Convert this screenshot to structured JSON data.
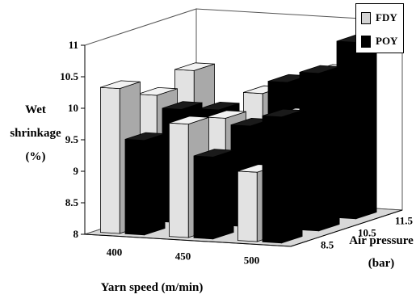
{
  "chart_data": {
    "type": "bar",
    "subtype": "3d-bar",
    "xlabel": "Yarn speed (m/min)",
    "ylabel": "Air pressure (bar)",
    "zlabel": "Wet shrinkage (%)",
    "x_categories": [
      "400",
      "450",
      "500"
    ],
    "y_categories": [
      "8.5",
      "10.5",
      "11.5"
    ],
    "zlim": [
      8,
      11
    ],
    "z_ticks": [
      "8",
      "8.5",
      "9",
      "9.5",
      "10",
      "10.5",
      "11"
    ],
    "grid": false,
    "legend_position": "top-right",
    "series": [
      {
        "name": "FDY",
        "color": "#d4d4d4",
        "values": [
          {
            "x": "400",
            "y": "8.5",
            "z": 10.3
          },
          {
            "x": "400",
            "y": "10.5",
            "z": 10.0
          },
          {
            "x": "400",
            "y": "11.5",
            "z": 10.2
          },
          {
            "x": "450",
            "y": "8.5",
            "z": 9.8
          },
          {
            "x": "450",
            "y": "10.5",
            "z": 9.7
          },
          {
            "x": "450",
            "y": "11.5",
            "z": 9.9
          },
          {
            "x": "500",
            "y": "8.5",
            "z": 9.1
          },
          {
            "x": "500",
            "y": "10.5",
            "z": 9.8
          },
          {
            "x": "500",
            "y": "11.5",
            "z": 10.3
          }
        ]
      },
      {
        "name": "POY",
        "color": "#000000",
        "values": [
          {
            "x": "400",
            "y": "8.5",
            "z": 9.5
          },
          {
            "x": "400",
            "y": "10.5",
            "z": 9.8
          },
          {
            "x": "400",
            "y": "11.5",
            "z": 9.6
          },
          {
            "x": "450",
            "y": "8.5",
            "z": 9.3
          },
          {
            "x": "450",
            "y": "10.5",
            "z": 9.6
          },
          {
            "x": "450",
            "y": "11.5",
            "z": 10.1
          },
          {
            "x": "500",
            "y": "8.5",
            "z": 10.0
          },
          {
            "x": "500",
            "y": "10.5",
            "z": 10.5
          },
          {
            "x": "500",
            "y": "11.5",
            "z": 10.8
          }
        ]
      }
    ]
  },
  "labels": {
    "z_axis_line1": "Wet",
    "z_axis_line2": "shrinkage",
    "z_axis_line3": "(%)",
    "x_axis": "Yarn speed (m/min)",
    "y_axis_line1": "Air pressure",
    "y_axis_line2": "(bar)"
  }
}
